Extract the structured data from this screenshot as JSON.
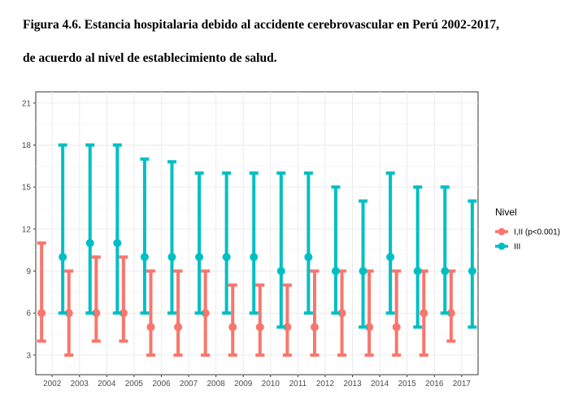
{
  "title_line1": "Figura 4.6. Estancia hospitalaria debido al accidente cerebrovascular en Perú 2002-2017,",
  "title_line2": "de acuerdo al nivel de establecimiento de salud.",
  "chart_data": {
    "type": "errorbar",
    "categories": [
      "2002",
      "2003",
      "2004",
      "2005",
      "2006",
      "2007",
      "2008",
      "2009",
      "2010",
      "2011",
      "2012",
      "2013",
      "2014",
      "2015",
      "2016",
      "2017"
    ],
    "ylim": [
      1.6,
      21.8
    ],
    "yticks": [
      3,
      6,
      9,
      12,
      15,
      18,
      21
    ],
    "grid": true,
    "legend": {
      "title": "Nivel",
      "placement": "right"
    },
    "series": [
      {
        "name": "I,II (p<0.001)",
        "color": "#F8766D",
        "center": [
          6,
          6,
          6,
          6,
          5,
          5,
          6,
          5,
          5,
          5,
          5,
          6,
          5,
          5,
          6,
          6
        ],
        "low": [
          4,
          3,
          4,
          4,
          3,
          3,
          3,
          3,
          3,
          3,
          3,
          3,
          3,
          3,
          3,
          4
        ],
        "high": [
          11,
          9,
          10,
          10,
          9,
          9,
          9,
          8,
          8,
          8,
          9,
          9,
          9,
          9,
          9,
          9
        ]
      },
      {
        "name": "III",
        "color": "#00BFC4",
        "center": [
          10,
          11,
          11,
          10,
          10,
          10,
          10,
          10,
          9,
          10,
          9,
          9,
          10,
          9,
          9,
          9
        ],
        "low": [
          6,
          6,
          6,
          6,
          6,
          6,
          6,
          6,
          5,
          6,
          6,
          5,
          6,
          5,
          6,
          5
        ],
        "high": [
          18,
          18,
          18,
          17,
          16.8,
          16,
          16,
          16,
          16,
          16,
          15,
          14,
          16,
          15,
          15,
          14
        ]
      }
    ]
  }
}
